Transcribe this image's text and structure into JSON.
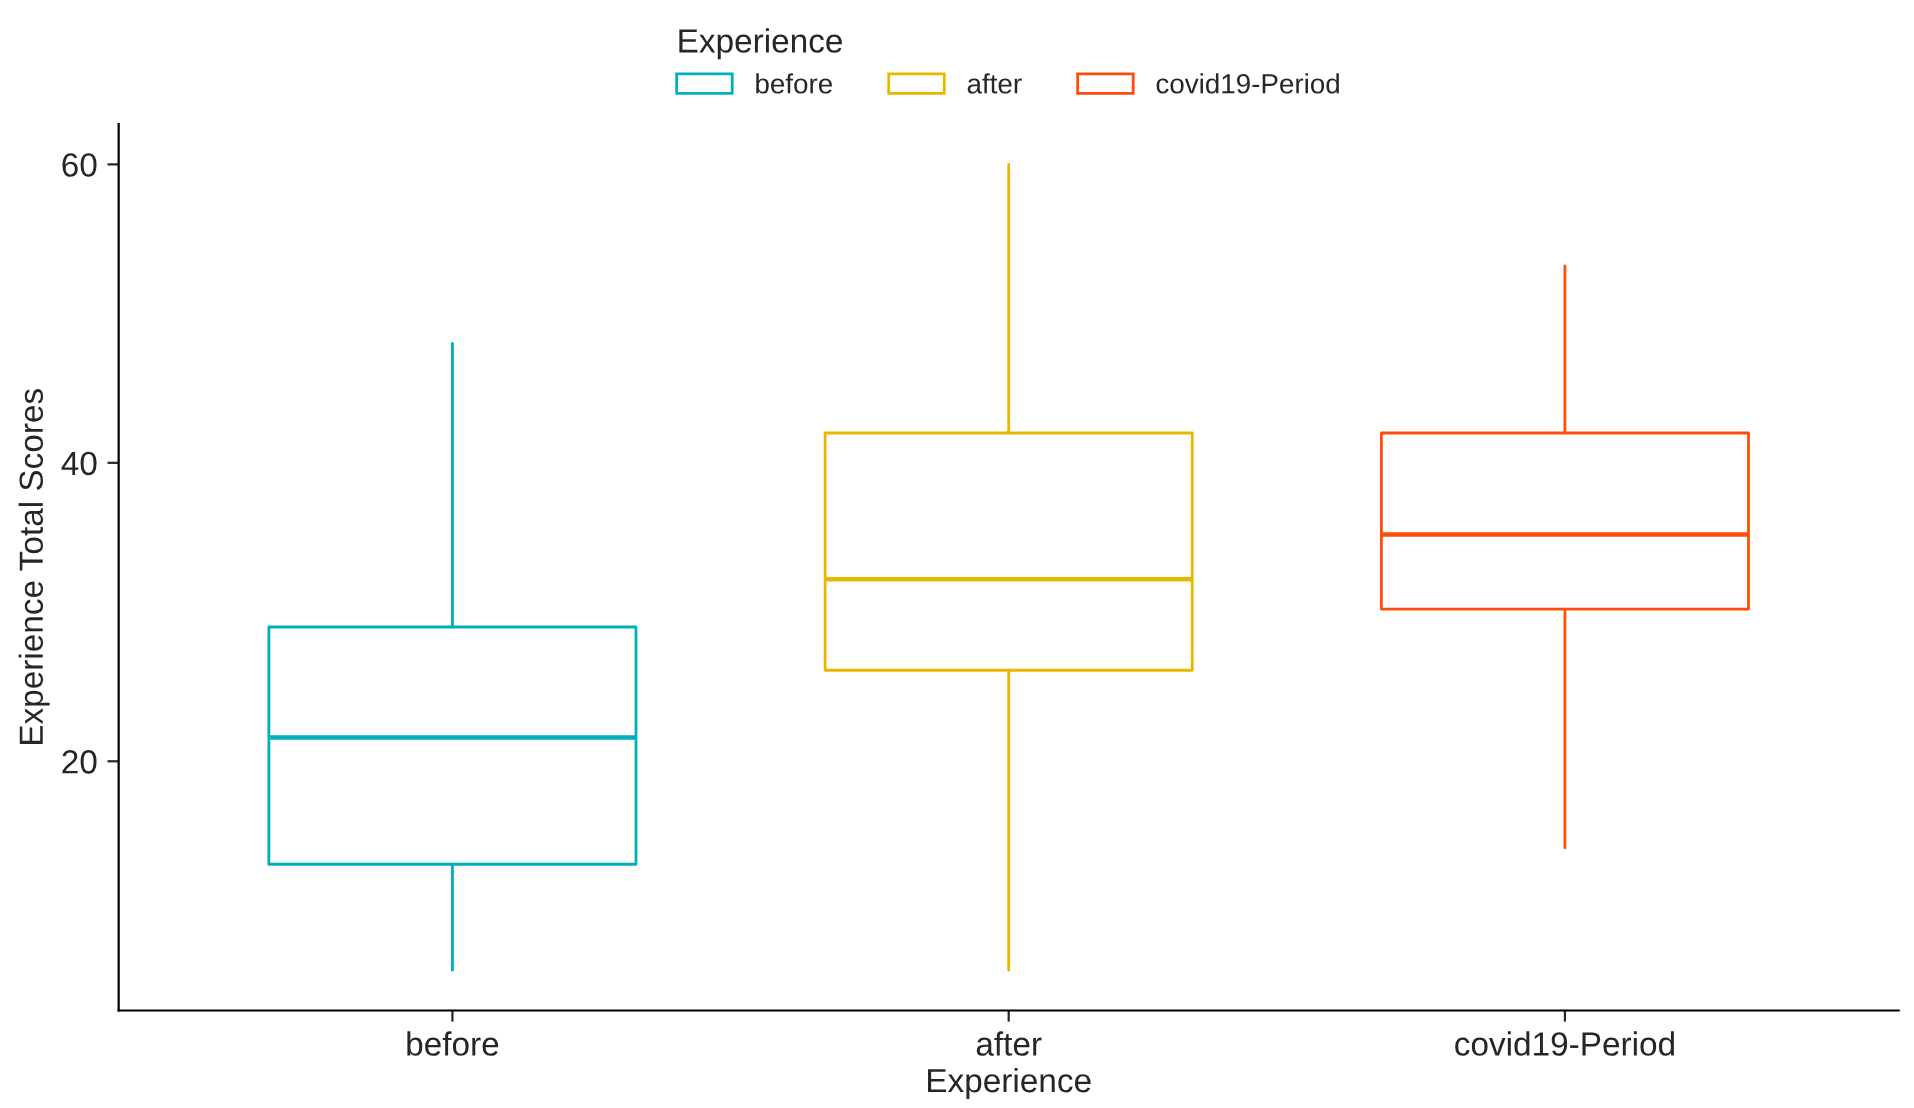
{
  "chart_data": {
    "type": "box",
    "xlabel": "Experience",
    "ylabel": "Experience Total Scores",
    "legend_title": "Experience",
    "categories": [
      "before",
      "after",
      "covid19-Period"
    ],
    "series": [
      {
        "name": "before",
        "color": "#00afbb",
        "boxes": [
          {
            "low": 6,
            "q1": 13.1,
            "median": 21.6,
            "q3": 29,
            "high": 48
          },
          null,
          null
        ]
      },
      {
        "name": "after",
        "color": "#e7b800",
        "boxes": [
          null,
          {
            "low": 6,
            "q1": 26.1,
            "median": 32.2,
            "q3": 42,
            "high": 60
          },
          null
        ]
      },
      {
        "name": "covid19-Period",
        "color": "#fc4e07",
        "boxes": [
          null,
          null,
          {
            "low": 14.2,
            "q1": 30.2,
            "median": 35.2,
            "q3": 42,
            "high": 53.2
          }
        ]
      }
    ],
    "ylim": [
      3.3,
      62.7
    ],
    "yticks": [
      20,
      40,
      60
    ],
    "grid": false,
    "legend": "top"
  }
}
